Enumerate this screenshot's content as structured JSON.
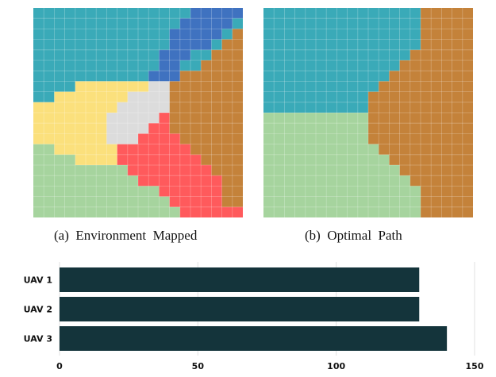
{
  "captions": {
    "a": "(a)  Environment  Mapped",
    "b": "(b)  Optimal  Path"
  },
  "colors": {
    "teal": "#3aaab8",
    "blue": "#3f72c0",
    "brown": "#c4823a",
    "yellow": "#fbe07c",
    "gray": "#dcdcdc",
    "red": "#ff5a5c",
    "green": "#a6d49e",
    "bar": "#14343b",
    "grid": "#e2e2e2"
  },
  "chart_data": [
    {
      "type": "heatmap",
      "title": "(a)  Environment  Mapped",
      "grid_size": [
        20,
        20
      ],
      "regions": [
        "teal",
        "blue",
        "brown",
        "yellow",
        "gray",
        "red",
        "green"
      ]
    },
    {
      "type": "heatmap",
      "title": "(b)  Optimal  Path",
      "grid_size": [
        20,
        20
      ],
      "regions": [
        "teal",
        "brown",
        "green"
      ]
    },
    {
      "type": "bar",
      "orientation": "horizontal",
      "categories": [
        "UAV 1",
        "UAV 2",
        "UAV 3"
      ],
      "values": [
        130,
        130,
        140
      ],
      "xlim": [
        0,
        150
      ],
      "xticks": [
        "0",
        "50",
        "100",
        "150"
      ],
      "grid": true
    }
  ]
}
